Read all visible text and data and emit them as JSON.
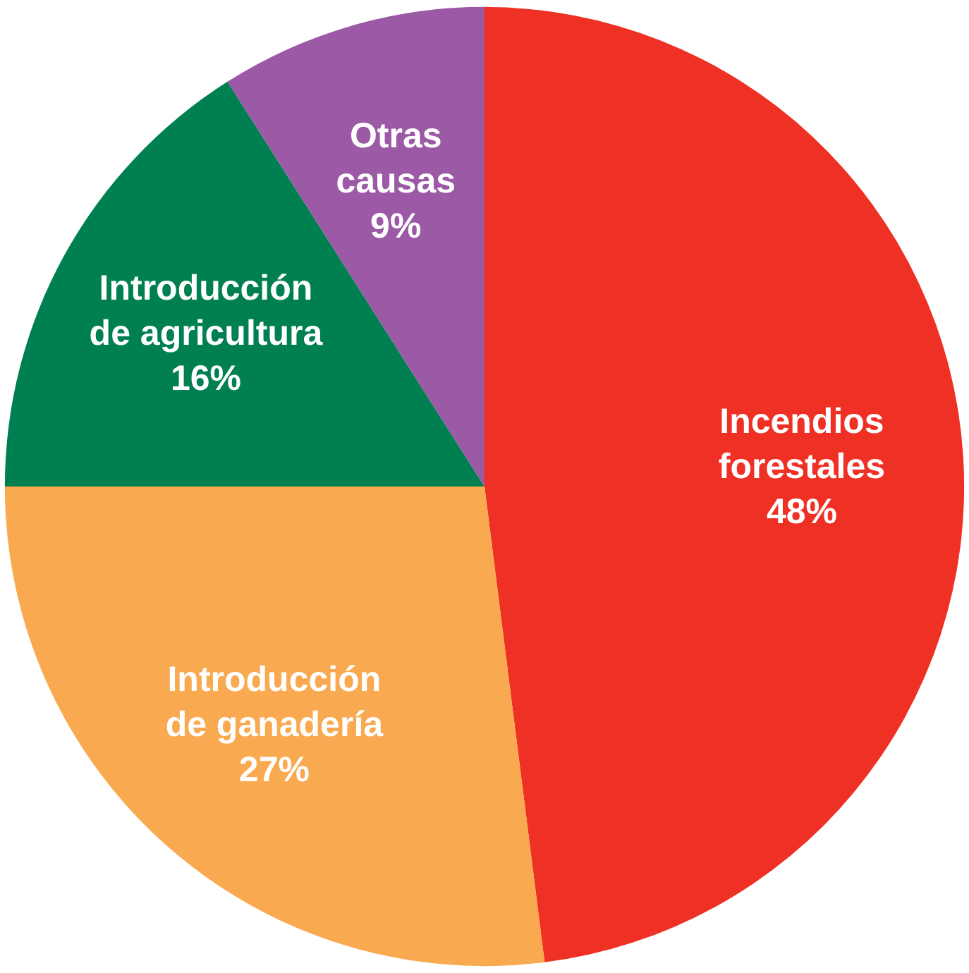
{
  "chart_data": {
    "type": "pie",
    "categories": [
      "Incendios\nforestales",
      "Introducción\nde ganadería",
      "Introducción\nde agricultura",
      "Otras\ncausas"
    ],
    "values": [
      48,
      27,
      16,
      9
    ],
    "value_labels": [
      "48%",
      "27%",
      "16%",
      "9%"
    ],
    "colors": [
      "#ee3124",
      "#f9a94f",
      "#008051",
      "#9b59a6"
    ]
  }
}
